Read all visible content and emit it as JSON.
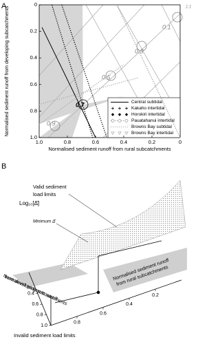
{
  "chart_data": [
    {
      "type": "line",
      "panel_label": "A",
      "xlabel": "Normalised sediment runoff from rural subcatchments",
      "ylabel": "Normalised sediment runoff from developing subcatchments",
      "xlim": [
        1,
        0
      ],
      "xticks": [
        {
          "value": 1,
          "label": "1.0"
        },
        0.8,
        0.6,
        0.4,
        0.2,
        0
      ],
      "ylim": [
        0,
        1
      ],
      "yticks": [
        0,
        0.2,
        0.4,
        0.6,
        0.8,
        {
          "value": 1,
          "label": "1.0"
        }
      ],
      "contour_labels": [
        "0.1",
        "0.3",
        "0.5",
        "0.7",
        "0.9"
      ],
      "diagonal_label": "1:1",
      "legend": "lower right",
      "series": [
        {
          "name": "Central subtidal",
          "color": "#000000",
          "dash": "solid",
          "marker": "none",
          "x": [
            0.98,
            0.6
          ],
          "values": [
            0.17,
            1
          ]
        },
        {
          "name": "Kakaho intertidal",
          "color": "#000000",
          "dash": "dotted",
          "marker": "plus",
          "x": [
            0.84,
            0.52
          ],
          "values": [
            0,
            1
          ]
        },
        {
          "name": "Horokiri intertidal",
          "color": "#000000",
          "dash": "dotted",
          "marker": "diamond",
          "x": [
            0.91,
            0.62
          ],
          "values": [
            0,
            1
          ]
        },
        {
          "name": "Pauatahanui intertidal",
          "color": "#999999",
          "dash": "dotted",
          "marker": "circle",
          "x": [
            0.45,
            0
          ],
          "values": [
            0,
            1
          ]
        },
        {
          "name": "Browns Bay subtidal",
          "color": "#aaaaaa",
          "dash": "dotted",
          "marker": "none",
          "x": [
            1,
            0.4
          ],
          "values": [
            0.9,
            0.45
          ]
        },
        {
          "name": "Browns Bay intertidal",
          "color": "#aaaaaa",
          "dash": "dotted",
          "marker": "triangle",
          "x": [
            1,
            0.3
          ],
          "values": [
            0.75,
            0.55
          ]
        }
      ]
    },
    {
      "type": "surface",
      "panel_label": "B",
      "zlabel": "Log₁₀[Δ̄]",
      "annotations": [
        "Valid sediment",
        "load limits",
        "Minimum Δ̄",
        "Invalid sediment load limits"
      ],
      "xlabel": [
        "Normalised sediment runoff",
        "from rural subcatchments"
      ],
      "ylabel": [
        "Normalised sediment runoff",
        "from developing subcatchments"
      ],
      "xlim": [
        1,
        0
      ],
      "xticks": [
        0.8,
        0.6,
        0.4,
        0.2
      ],
      "ylim": [
        0,
        1
      ],
      "yticks": [
        0.4,
        0.6,
        0.8,
        {
          "value": 1,
          "label": "1.0"
        }
      ]
    }
  ]
}
